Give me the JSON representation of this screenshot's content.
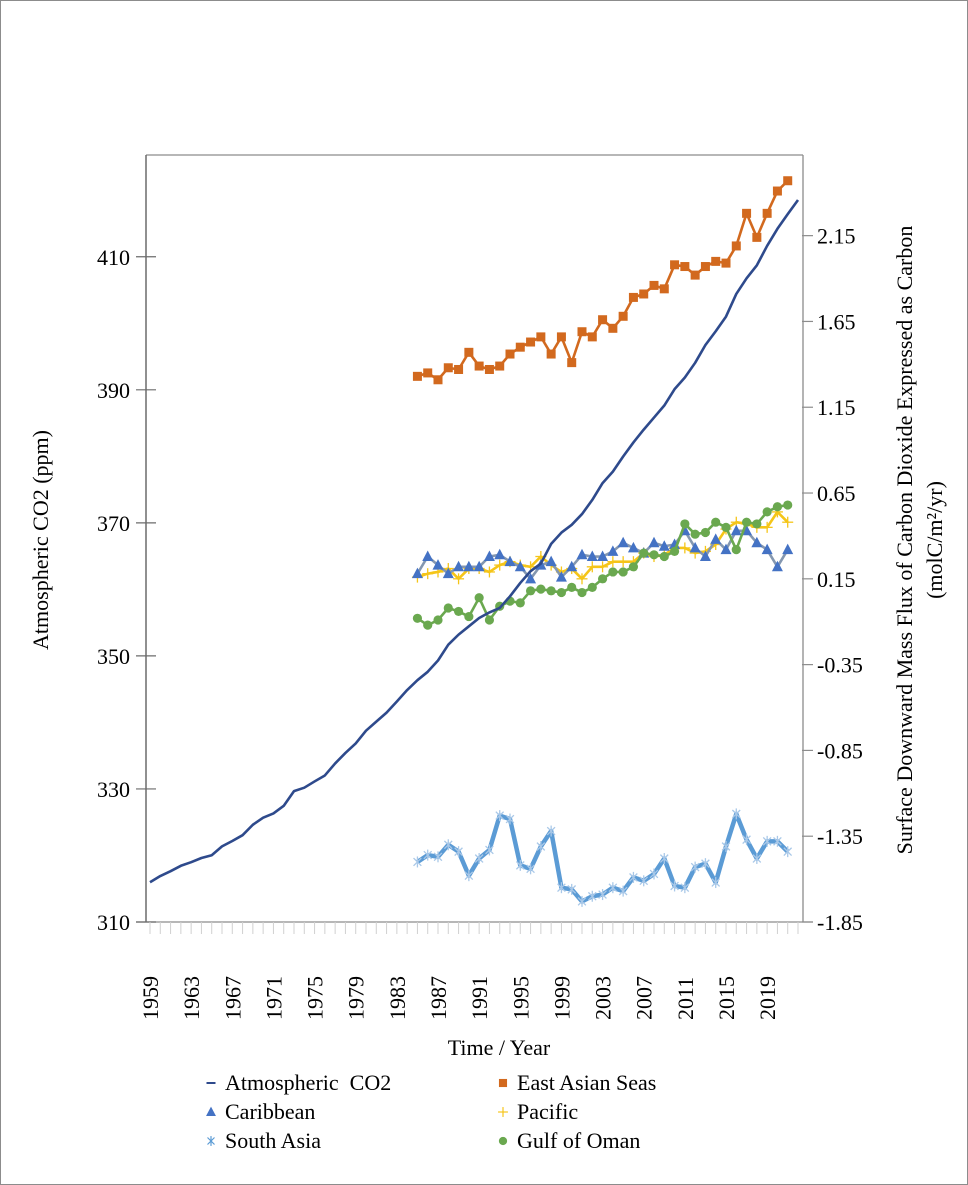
{
  "chart_data": {
    "type": "line",
    "title": "",
    "xlabel": "Time / Year",
    "ylabel_left": "Atmospheric CO2 (ppm)",
    "ylabel_right_line1": "Surface Downward Mass Flux of Carbon Dioxide Expressed as Carbon",
    "ylabel_right_line2": "(molC/m²/yr)",
    "x_range": [
      1959,
      2022
    ],
    "x_tick_labels": [
      "1959",
      "1963",
      "1967",
      "1971",
      "1975",
      "1979",
      "1983",
      "1987",
      "1991",
      "1995",
      "1999",
      "2003",
      "2007",
      "2011",
      "2015",
      "2019"
    ],
    "y_left_range": [
      310,
      425.3
    ],
    "y_left_ticks": [
      310,
      330,
      350,
      370,
      390,
      410
    ],
    "y_right_range": [
      -1.85,
      2.62
    ],
    "y_right_ticks": [
      "2.15",
      "1.65",
      "1.15",
      "0.65",
      "0.15",
      "-0.35",
      "-0.85",
      "-1.35",
      "-1.85"
    ],
    "grid": false,
    "legend_position": "bottom",
    "series": [
      {
        "name": "Atmospheric  CO2",
        "axis": "left",
        "color": "#2e4a8c",
        "marker": "dash",
        "x_start": 1959,
        "values": [
          315.98,
          316.91,
          317.64,
          318.45,
          318.99,
          319.62,
          320.04,
          321.37,
          322.18,
          323.05,
          324.62,
          325.68,
          326.32,
          327.46,
          329.68,
          330.19,
          331.13,
          332.03,
          333.84,
          335.41,
          336.84,
          338.76,
          340.12,
          341.48,
          343.15,
          344.87,
          346.35,
          347.61,
          349.31,
          351.69,
          353.2,
          354.45,
          355.7,
          356.54,
          357.21,
          358.96,
          360.97,
          362.74,
          363.88,
          366.84,
          368.54,
          369.71,
          371.32,
          373.45,
          375.98,
          377.7,
          379.98,
          382.09,
          384.02,
          385.83,
          387.64,
          390.1,
          391.85,
          394.06,
          396.74,
          398.81,
          401.01,
          404.41,
          406.76,
          408.72,
          411.65,
          414.21,
          416.41,
          418.53
        ]
      },
      {
        "name": "East Asian Seas",
        "axis": "right",
        "color": "#d2691e",
        "marker": "square",
        "x_start": 1985,
        "values": [
          1.33,
          1.35,
          1.31,
          1.38,
          1.37,
          1.47,
          1.39,
          1.37,
          1.39,
          1.46,
          1.5,
          1.53,
          1.56,
          1.46,
          1.56,
          1.41,
          1.59,
          1.56,
          1.66,
          1.61,
          1.68,
          1.79,
          1.81,
          1.86,
          1.84,
          1.98,
          1.97,
          1.92,
          1.97,
          2.0,
          1.99,
          2.09,
          2.28,
          2.14,
          2.28,
          2.41,
          2.47
        ]
      },
      {
        "name": "Caribbean",
        "axis": "right",
        "color": "#4472c4",
        "line_color": "#8497b0",
        "marker": "triangle",
        "x_start": 1985,
        "values": [
          0.18,
          0.28,
          0.23,
          0.18,
          0.22,
          0.22,
          0.22,
          0.28,
          0.29,
          0.25,
          0.22,
          0.15,
          0.23,
          0.25,
          0.16,
          0.22,
          0.29,
          0.28,
          0.28,
          0.31,
          0.36,
          0.33,
          0.3,
          0.36,
          0.34,
          0.35,
          0.43,
          0.33,
          0.28,
          0.38,
          0.32,
          0.43,
          0.43,
          0.36,
          0.32,
          0.22,
          0.32
        ]
      },
      {
        "name": "Pacific",
        "axis": "right",
        "color": "#f5c518",
        "marker": "star",
        "x_start": 1985,
        "values": [
          0.16,
          0.18,
          0.19,
          0.21,
          0.15,
          0.21,
          0.21,
          0.19,
          0.23,
          0.25,
          0.23,
          0.22,
          0.28,
          0.23,
          0.19,
          0.21,
          0.15,
          0.22,
          0.22,
          0.25,
          0.25,
          0.25,
          0.3,
          0.28,
          0.29,
          0.33,
          0.33,
          0.3,
          0.31,
          0.35,
          0.44,
          0.48,
          0.47,
          0.45,
          0.45,
          0.54,
          0.48
        ]
      },
      {
        "name": "South Asia",
        "axis": "right",
        "color": "#5b9bd5",
        "marker": "asterisk",
        "x_start": 1985,
        "values": [
          -1.5,
          -1.46,
          -1.47,
          -1.4,
          -1.44,
          -1.58,
          -1.48,
          -1.43,
          -1.23,
          -1.25,
          -1.52,
          -1.54,
          -1.41,
          -1.32,
          -1.65,
          -1.66,
          -1.73,
          -1.7,
          -1.69,
          -1.65,
          -1.67,
          -1.59,
          -1.61,
          -1.57,
          -1.48,
          -1.64,
          -1.65,
          -1.53,
          -1.51,
          -1.62,
          -1.41,
          -1.22,
          -1.37,
          -1.48,
          -1.38,
          -1.38,
          -1.44
        ]
      },
      {
        "name": "Gulf of Oman",
        "axis": "right",
        "color": "#6aa84f",
        "marker": "circle",
        "x_start": 1985,
        "values": [
          -0.08,
          -0.12,
          -0.09,
          -0.02,
          -0.04,
          -0.07,
          0.04,
          -0.09,
          -0.01,
          0.02,
          0.01,
          0.08,
          0.09,
          0.08,
          0.07,
          0.1,
          0.07,
          0.1,
          0.15,
          0.19,
          0.19,
          0.22,
          0.3,
          0.29,
          0.28,
          0.31,
          0.47,
          0.41,
          0.42,
          0.48,
          0.45,
          0.32,
          0.48,
          0.47,
          0.54,
          0.57,
          0.58
        ]
      }
    ],
    "legend_order": [
      0,
      1,
      2,
      3,
      4,
      5
    ]
  }
}
